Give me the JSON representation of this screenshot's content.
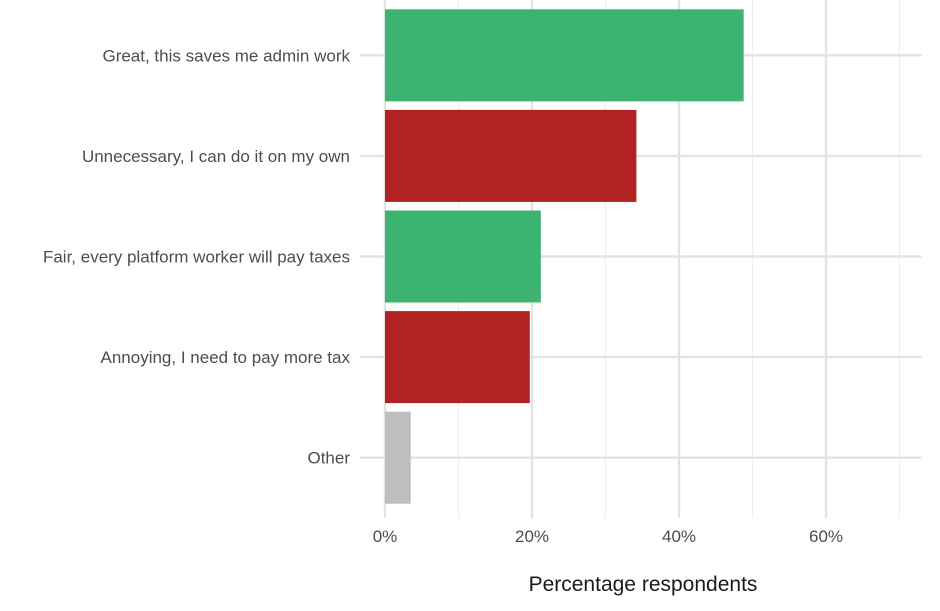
{
  "chart_data": {
    "type": "bar",
    "orientation": "horizontal",
    "categories": [
      "Great, this saves me admin work",
      "Unnecessary, I can do it on my own",
      "Fair, every platform worker will pay taxes",
      "Annoying, I need to pay more tax",
      "Other"
    ],
    "values": [
      48.8,
      34.2,
      21.2,
      19.7,
      3.5
    ],
    "colors": [
      "#3cb371",
      "#b22222",
      "#3cb371",
      "#b22222",
      "#bebebe"
    ],
    "xlabel": "Percentage respondents",
    "ylabel": "",
    "xlim": [
      0,
      73
    ],
    "x_ticks": [
      0,
      20,
      40,
      60
    ],
    "x_tick_labels": [
      "0%",
      "20%",
      "40%",
      "60%"
    ],
    "grid": true,
    "legend": "none"
  }
}
